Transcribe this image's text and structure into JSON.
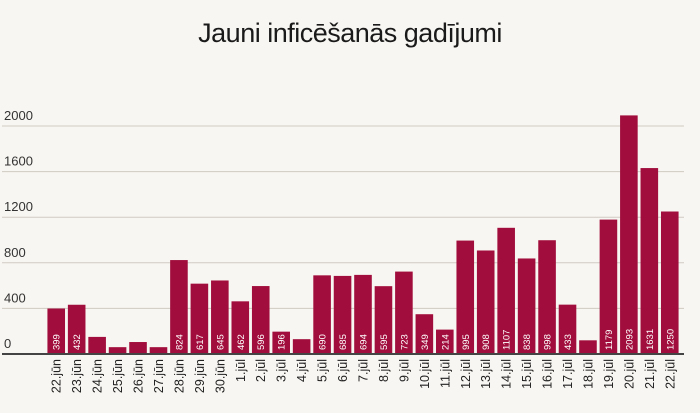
{
  "chart_data": {
    "type": "bar",
    "title": "Jauni inficēšanās gadījumi",
    "xlabel": "",
    "ylabel": "",
    "ylim": [
      0,
      2400
    ],
    "yticks": [
      0,
      400,
      800,
      1200,
      1600,
      2000
    ],
    "grid": true,
    "bar_color": "#a10d3c",
    "categories": [
      "22.jūn",
      "23.jūn",
      "24.jūn",
      "25.jūn",
      "26.jūn",
      "27.jūn",
      "28.jūn",
      "29.jūn",
      "30.jūn",
      "1.jūl",
      "2.jūl",
      "3.jūl",
      "4.jūl",
      "5.jūl",
      "6.jūl",
      "7.jūl",
      "8.jūl",
      "9.jūl",
      "10.jūl",
      "11.jūl",
      "12.jūl",
      "13.jūl",
      "14.jūl",
      "15.jūl",
      "16.jūl",
      "17.jūl",
      "18.jūl",
      "19.jūl",
      "20.jūl",
      "21.jūl",
      "22.jūl"
    ],
    "values": [
      399,
      432,
      150,
      60,
      105,
      60,
      824,
      617,
      645,
      462,
      596,
      196,
      130,
      690,
      685,
      694,
      595,
      723,
      349,
      214,
      995,
      908,
      1107,
      838,
      998,
      433,
      120,
      1179,
      2093,
      1631,
      1250
    ],
    "data_labels": [
      "399",
      "432",
      "",
      "",
      "",
      "",
      "824",
      "617",
      "645",
      "462",
      "596",
      "196",
      "",
      "690",
      "685",
      "694",
      "595",
      "723",
      "349",
      "214",
      "995",
      "908",
      "1107",
      "838",
      "998",
      "433",
      "",
      "1179",
      "2093",
      "1631",
      "1250"
    ]
  }
}
